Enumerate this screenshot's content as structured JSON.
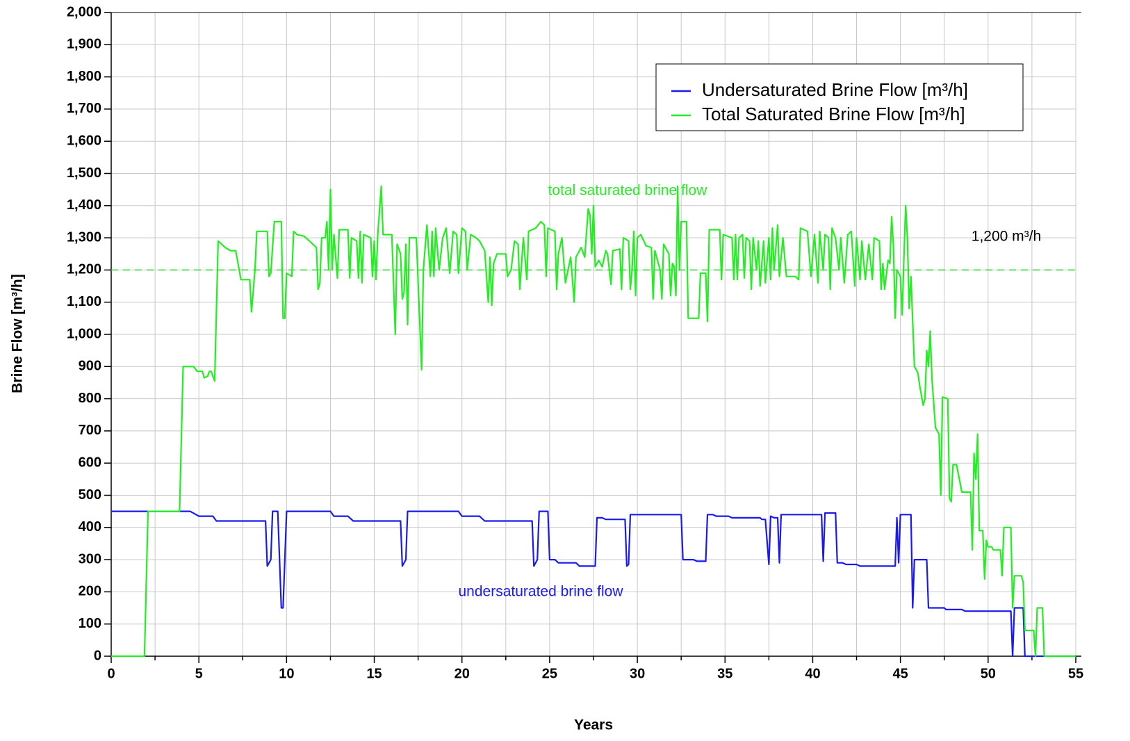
{
  "chart_data": {
    "type": "line",
    "xlabel": "Years",
    "ylabel": "Brine Flow [m³/h]",
    "xlim": [
      0,
      55
    ],
    "ylim": [
      0,
      2000
    ],
    "xticks": [
      0,
      5,
      10,
      15,
      20,
      25,
      30,
      35,
      40,
      45,
      50,
      55
    ],
    "xminorticks": [
      2.5,
      7.5,
      12.5,
      17.5,
      22.5,
      27.5,
      32.5,
      37.5,
      42.5,
      47.5,
      52.5
    ],
    "yticks": [
      0,
      100,
      200,
      300,
      400,
      500,
      600,
      700,
      800,
      900,
      {
        "value": 1000,
        "label": "1,000"
      },
      {
        "value": 1100,
        "label": "1,100"
      },
      {
        "value": 1200,
        "label": "1,200"
      },
      {
        "value": 1300,
        "label": "1,300"
      },
      {
        "value": 1400,
        "label": "1,400"
      },
      {
        "value": 1500,
        "label": "1,500"
      },
      {
        "value": 1600,
        "label": "1,600"
      },
      {
        "value": 1700,
        "label": "1,700"
      },
      {
        "value": 1800,
        "label": "1,800"
      },
      {
        "value": 1900,
        "label": "1,900"
      },
      {
        "value": 2000,
        "label": "2,000"
      }
    ],
    "grid": true,
    "legend": "upper right",
    "reference_line": {
      "value": 1200,
      "label": "1,200 m³/h",
      "color": "#22dd22"
    },
    "annotations": [
      {
        "text": "total saturated brine flow",
        "color": "#22ee22"
      },
      {
        "text": "undersaturated brine flow",
        "color": "#1a1aee"
      }
    ],
    "series": [
      {
        "name": "Undersaturated Brine Flow [m³/h]",
        "color": "#1a1aee",
        "x": [
          0,
          4.5,
          5,
          5.8,
          6,
          8.8,
          8.9,
          9.1,
          9.2,
          9.5,
          9.7,
          9.8,
          10,
          12.5,
          12.7,
          13.5,
          13.8,
          16.5,
          16.6,
          16.8,
          16.9,
          19.8,
          20,
          21,
          21.3,
          24,
          24.1,
          24.3,
          24.4,
          24.9,
          25,
          25.3,
          25.5,
          26.5,
          26.7,
          27.6,
          27.7,
          28,
          28.2,
          29.3,
          29.4,
          29.5,
          29.6,
          32.5,
          32.6,
          33.2,
          33.4,
          33.9,
          34,
          34.3,
          34.5,
          35.2,
          35.4,
          37,
          37.1,
          37.3,
          37.5,
          37.6,
          37.8,
          38,
          38.1,
          38.2,
          40.5,
          40.6,
          40.7,
          41.3,
          41.4,
          41.7,
          41.9,
          42.5,
          42.7,
          44.7,
          44.8,
          44.9,
          45,
          45.6,
          45.7,
          45.8,
          46.5,
          46.6,
          47.5,
          47.6,
          48.5,
          48.7,
          51.3,
          51.4,
          51.5,
          52,
          52.1,
          53,
          55
        ],
        "values": [
          450,
          450,
          435,
          435,
          420,
          420,
          280,
          300,
          450,
          450,
          150,
          150,
          450,
          450,
          435,
          435,
          420,
          420,
          280,
          300,
          450,
          450,
          435,
          435,
          420,
          420,
          280,
          300,
          450,
          450,
          300,
          300,
          290,
          290,
          280,
          280,
          430,
          430,
          425,
          425,
          280,
          285,
          440,
          440,
          300,
          300,
          295,
          295,
          440,
          440,
          435,
          435,
          430,
          430,
          425,
          425,
          285,
          435,
          430,
          430,
          290,
          440,
          440,
          295,
          445,
          445,
          290,
          290,
          285,
          285,
          280,
          280,
          430,
          290,
          440,
          440,
          150,
          300,
          300,
          150,
          150,
          145,
          145,
          140,
          140,
          0,
          150,
          150,
          0,
          0,
          0
        ]
      },
      {
        "name": "Total Saturated Brine Flow [m³/h]",
        "color": "#22ee22",
        "x": [
          0,
          1.9,
          2.1,
          3.9,
          4.1,
          4.7,
          4.9,
          5.2,
          5.3,
          5.5,
          5.6,
          5.7,
          5.9,
          6.1,
          6.5,
          6.8,
          7.1,
          7.4,
          7.9,
          8,
          8.2,
          8.3,
          8.9,
          9,
          9.1,
          9.3,
          9.7,
          9.8,
          9.9,
          10,
          10.3,
          10.4,
          10.6,
          11,
          11.3,
          11.7,
          11.8,
          11.9,
          12,
          12.2,
          12.3,
          12.4,
          12.5,
          12.6,
          12.7,
          12.9,
          13,
          13.5,
          13.6,
          13.7,
          14,
          14.1,
          14.2,
          14.3,
          14.4,
          14.8,
          14.9,
          15,
          15.1,
          15.2,
          15.4,
          15.5,
          16,
          16.2,
          16.3,
          16.5,
          16.6,
          16.7,
          16.8,
          16.9,
          17,
          17.4,
          17.7,
          17.8,
          18,
          18.2,
          18.3,
          18.4,
          18.5,
          18.7,
          18.9,
          19.1,
          19.3,
          19.5,
          19.7,
          19.8,
          20,
          20.2,
          20.3,
          20.5,
          20.8,
          21,
          21.3,
          21.5,
          21.6,
          21.7,
          21.8,
          22,
          22.5,
          22.6,
          22.8,
          23,
          23.2,
          23.3,
          23.5,
          23.7,
          23.8,
          24.2,
          24.5,
          24.7,
          24.8,
          24.9,
          25.3,
          25.4,
          25.5,
          25.7,
          25.9,
          26.2,
          26.4,
          26.5,
          26.8,
          27,
          27.2,
          27.3,
          27.4,
          27.5,
          27.6,
          27.8,
          28,
          28.2,
          28.3,
          28.5,
          28.6,
          29,
          29.1,
          29.2,
          29.5,
          29.6,
          29.7,
          29.8,
          29.9,
          30,
          30.2,
          30.5,
          30.8,
          30.9,
          31,
          31.3,
          31.4,
          31.5,
          31.8,
          31.9,
          32,
          32.1,
          32.2,
          32.3,
          32.4,
          32.5,
          32.8,
          32.9,
          33.5,
          33.6,
          33.9,
          34,
          34.1,
          34.7,
          34.8,
          34.9,
          35.4,
          35.5,
          35.6,
          35.7,
          35.8,
          36,
          36.1,
          36.2,
          36.4,
          36.5,
          36.6,
          36.8,
          36.9,
          37,
          37.2,
          37.3,
          37.5,
          37.6,
          37.7,
          37.8,
          38,
          38.1,
          38.3,
          38.5,
          39,
          39.2,
          39.3,
          39.7,
          39.9,
          40.1,
          40.3,
          40.4,
          40.6,
          40.7,
          40.9,
          41,
          41.1,
          41.3,
          41.5,
          41.6,
          41.8,
          42,
          42.2,
          42.4,
          42.5,
          42.7,
          42.8,
          43,
          43.2,
          43.4,
          43.5,
          43.8,
          43.9,
          44,
          44.1,
          44.3,
          44.4,
          44.5,
          44.6,
          44.7,
          44.8,
          45,
          45.1,
          45.2,
          45.3,
          45.4,
          45.5,
          45.6,
          45.8,
          46,
          46.1,
          46.3,
          46.4,
          46.5,
          46.6,
          46.7,
          46.8,
          47,
          47.2,
          47.3,
          47.4,
          47.7,
          47.8,
          47.9,
          48,
          48.2,
          48.4,
          48.5,
          49,
          49.1,
          49.2,
          49.3,
          49.4,
          49.5,
          49.7,
          49.8,
          49.9,
          50,
          50.2,
          50.3,
          50.7,
          50.8,
          50.9,
          51.3,
          51.4,
          51.5,
          51.9,
          52,
          52.1,
          52.6,
          52.7,
          52.8,
          53.1,
          53.2,
          55
        ],
        "values": [
          0,
          0,
          450,
          450,
          900,
          900,
          885,
          885,
          865,
          870,
          885,
          885,
          855,
          1290,
          1270,
          1260,
          1260,
          1170,
          1170,
          1070,
          1200,
          1320,
          1320,
          1180,
          1190,
          1350,
          1350,
          1050,
          1050,
          1190,
          1180,
          1320,
          1310,
          1305,
          1290,
          1270,
          1140,
          1160,
          1300,
          1300,
          1350,
          1200,
          1450,
          1200,
          1310,
          1175,
          1325,
          1325,
          1175,
          1300,
          1290,
          1175,
          1320,
          1160,
          1310,
          1300,
          1180,
          1290,
          1170,
          1310,
          1460,
          1310,
          1310,
          1000,
          1280,
          1250,
          1110,
          1130,
          1280,
          1030,
          1300,
          1300,
          890,
          1200,
          1340,
          1180,
          1320,
          1180,
          1330,
          1200,
          1300,
          1330,
          1190,
          1320,
          1310,
          1190,
          1330,
          1320,
          1200,
          1310,
          1300,
          1290,
          1260,
          1100,
          1240,
          1090,
          1220,
          1250,
          1250,
          1180,
          1200,
          1290,
          1280,
          1140,
          1300,
          1170,
          1320,
          1330,
          1350,
          1340,
          1180,
          1330,
          1320,
          1140,
          1250,
          1300,
          1160,
          1240,
          1100,
          1240,
          1270,
          1240,
          1390,
          1370,
          1250,
          1400,
          1210,
          1230,
          1210,
          1260,
          1250,
          1155,
          1260,
          1265,
          1140,
          1300,
          1290,
          1140,
          1200,
          1320,
          1120,
          1300,
          1310,
          1275,
          1270,
          1110,
          1260,
          1200,
          1110,
          1280,
          1250,
          1120,
          1220,
          1210,
          1120,
          1460,
          1200,
          1350,
          1350,
          1050,
          1050,
          1190,
          1190,
          1040,
          1325,
          1325,
          1170,
          1310,
          1300,
          1170,
          1310,
          1170,
          1300,
          1310,
          1175,
          1300,
          1290,
          1140,
          1300,
          1200,
          1290,
          1150,
          1290,
          1160,
          1300,
          1170,
          1330,
          1200,
          1340,
          1180,
          1300,
          1180,
          1180,
          1170,
          1330,
          1320,
          1180,
          1310,
          1160,
          1320,
          1200,
          1310,
          1300,
          1140,
          1330,
          1300,
          1200,
          1300,
          1160,
          1310,
          1320,
          1150,
          1300,
          1170,
          1290,
          1170,
          1280,
          1170,
          1300,
          1290,
          1140,
          1220,
          1140,
          1230,
          1220,
          1365,
          1280,
          1050,
          1200,
          1180,
          1060,
          1240,
          1400,
          1300,
          1080,
          1180,
          900,
          880,
          840,
          780,
          800,
          950,
          900,
          1010,
          860,
          710,
          690,
          500,
          805,
          800,
          490,
          480,
          595,
          595,
          540,
          510,
          510,
          330,
          630,
          550,
          690,
          390,
          390,
          240,
          360,
          340,
          340,
          330,
          330,
          250,
          400,
          400,
          150,
          250,
          250,
          230,
          80,
          80,
          0,
          150,
          150,
          0,
          0
        ]
      }
    ]
  }
}
